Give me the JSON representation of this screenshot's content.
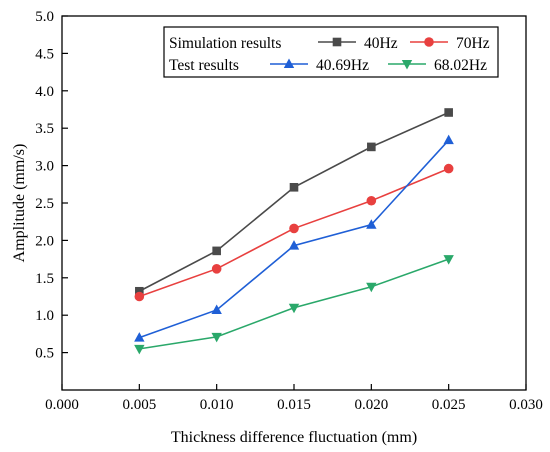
{
  "chart_data": {
    "type": "line",
    "xlabel": "Thickness difference fluctuation (mm)",
    "ylabel": "Amplitude (mm/s)",
    "xlim": [
      0.0,
      0.03
    ],
    "ylim": [
      0.0,
      5.0
    ],
    "x_ticks": [
      "0.000",
      "0.005",
      "0.010",
      "0.015",
      "0.020",
      "0.025",
      "0.030"
    ],
    "y_ticks": [
      "0.5",
      "1.0",
      "1.5",
      "2.0",
      "2.5",
      "3.0",
      "3.5",
      "4.0",
      "4.5",
      "5.0"
    ],
    "x": [
      0.005,
      0.01,
      0.015,
      0.02,
      0.025
    ],
    "legend_groups": [
      "Simulation results",
      "Test results"
    ],
    "legend_position": "top-right",
    "series": [
      {
        "name": "40Hz",
        "group": "Simulation results",
        "color": "#4a4a4a",
        "marker": "square",
        "values": [
          1.32,
          1.86,
          2.71,
          3.25,
          3.71
        ]
      },
      {
        "name": "70Hz",
        "group": "Simulation results",
        "color": "#e8403f",
        "marker": "circle",
        "values": [
          1.25,
          1.62,
          2.16,
          2.53,
          2.96
        ]
      },
      {
        "name": "40.69Hz",
        "group": "Test results",
        "color": "#1f5fd6",
        "marker": "triangle-up",
        "values": [
          0.7,
          1.07,
          1.93,
          2.21,
          3.34
        ]
      },
      {
        "name": "68.02Hz",
        "group": "Test results",
        "color": "#2aa86a",
        "marker": "triangle-down",
        "values": [
          0.55,
          0.71,
          1.1,
          1.38,
          1.75
        ]
      }
    ]
  }
}
